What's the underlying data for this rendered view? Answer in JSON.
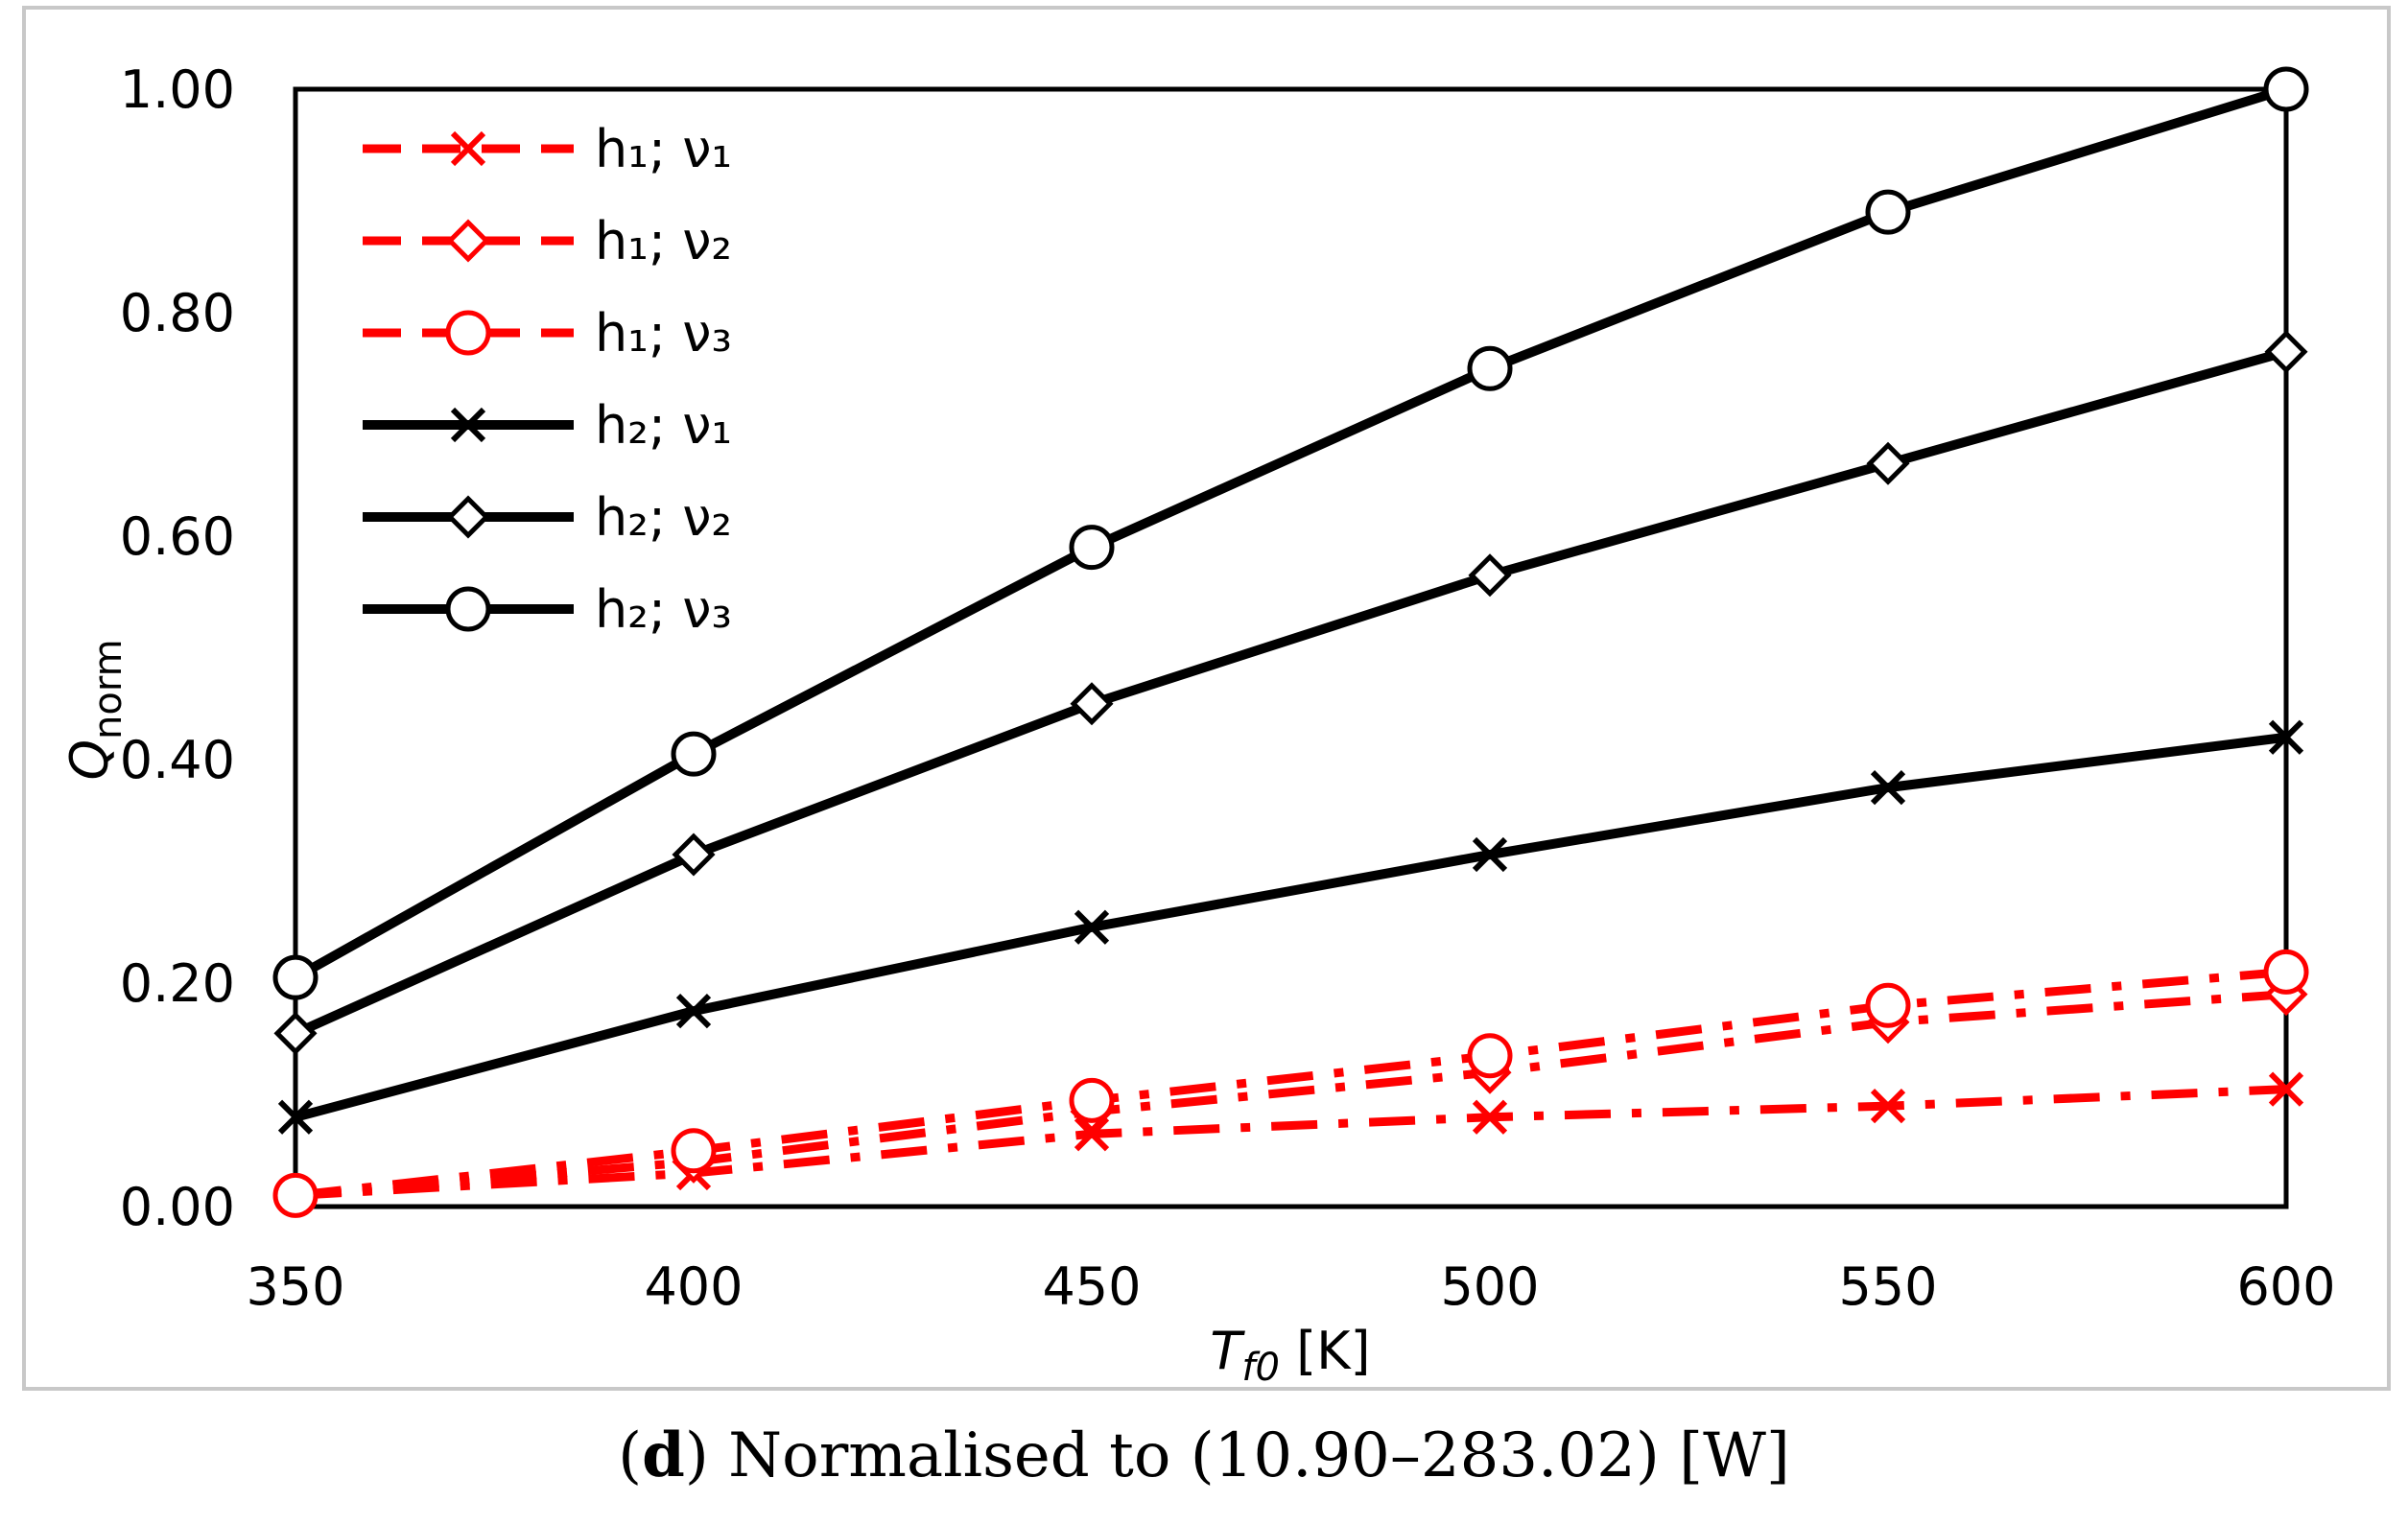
{
  "chart_data": {
    "type": "line",
    "title": "",
    "xlabel": {
      "main": "T",
      "sub": "f0",
      "unit": " [K]"
    },
    "ylabel": {
      "main": "Q",
      "sub": "norm"
    },
    "x": [
      350,
      400,
      450,
      500,
      550,
      600
    ],
    "xticks": [
      "350",
      "400",
      "450",
      "500",
      "550",
      "600"
    ],
    "yticks": [
      "0.00",
      "0.20",
      "0.40",
      "0.60",
      "0.80",
      "1.00"
    ],
    "xlim": [
      350,
      600
    ],
    "ylim": [
      0,
      1
    ],
    "grid": false,
    "legend_position": "top-left",
    "series": [
      {
        "name": "h₁; ν₁",
        "color": "#ff0000",
        "style": "dashdot",
        "marker": "x",
        "values": [
          0.01,
          0.03,
          0.065,
          0.08,
          0.09,
          0.105
        ]
      },
      {
        "name": "h₁; ν₂",
        "color": "#ff0000",
        "style": "dashdot",
        "marker": "diamond",
        "values": [
          0.01,
          0.04,
          0.085,
          0.12,
          0.165,
          0.19
        ]
      },
      {
        "name": "h₁; ν₃",
        "color": "#ff0000",
        "style": "dashdot",
        "marker": "circle",
        "values": [
          0.01,
          0.05,
          0.095,
          0.135,
          0.18,
          0.21
        ]
      },
      {
        "name": "h₂; ν₁",
        "color": "#000000",
        "style": "solid",
        "marker": "x",
        "values": [
          0.08,
          0.175,
          0.25,
          0.315,
          0.375,
          0.42
        ]
      },
      {
        "name": "h₂; ν₂",
        "color": "#000000",
        "style": "solid",
        "marker": "diamond",
        "values": [
          0.155,
          0.315,
          0.45,
          0.565,
          0.665,
          0.765
        ]
      },
      {
        "name": "h₂; ν₃",
        "color": "#000000",
        "style": "solid",
        "marker": "circle",
        "values": [
          0.205,
          0.405,
          0.59,
          0.75,
          0.89,
          1.0
        ]
      }
    ]
  },
  "caption": {
    "letter": "d",
    "text": " Normalised to (10.90–283.02) [W]"
  }
}
